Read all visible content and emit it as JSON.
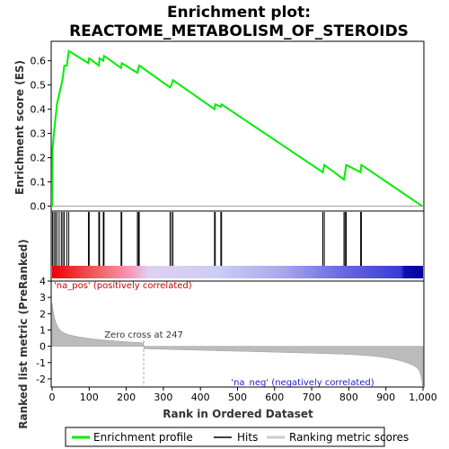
{
  "chart_data": {
    "type": "line",
    "title_line1": "Enrichment plot:",
    "title_line2": "REACTOME_METABOLISM_OF_STEROIDS",
    "es_panel": {
      "ylabel": "Enrichment score (ES)",
      "ylim": [
        -0.02,
        0.68
      ],
      "yticks": [
        "0.0",
        "0.1",
        "0.2",
        "0.3",
        "0.4",
        "0.5",
        "0.6"
      ],
      "series_color": "#00ee00",
      "points": [
        [
          0,
          0.0
        ],
        [
          1,
          0.23
        ],
        [
          5,
          0.3
        ],
        [
          9,
          0.36
        ],
        [
          13,
          0.42
        ],
        [
          19,
          0.46
        ],
        [
          25,
          0.5
        ],
        [
          29,
          0.53
        ],
        [
          33,
          0.58
        ],
        [
          40,
          0.58
        ],
        [
          45,
          0.64
        ],
        [
          98,
          0.59
        ],
        [
          100,
          0.61
        ],
        [
          126,
          0.58
        ],
        [
          128,
          0.61
        ],
        [
          138,
          0.6
        ],
        [
          140,
          0.62
        ],
        [
          186,
          0.57
        ],
        [
          188,
          0.59
        ],
        [
          230,
          0.55
        ],
        [
          233,
          0.57
        ],
        [
          235,
          0.58
        ],
        [
          318,
          0.49
        ],
        [
          322,
          0.5
        ],
        [
          326,
          0.52
        ],
        [
          438,
          0.4
        ],
        [
          440,
          0.42
        ],
        [
          455,
          0.41
        ],
        [
          457,
          0.42
        ],
        [
          730,
          0.14
        ],
        [
          734,
          0.17
        ],
        [
          787,
          0.11
        ],
        [
          790,
          0.14
        ],
        [
          793,
          0.17
        ],
        [
          832,
          0.14
        ],
        [
          834,
          0.17
        ],
        [
          998,
          0.0
        ]
      ]
    },
    "hits": [
      1,
      5,
      9,
      13,
      19,
      25,
      29,
      33,
      40,
      45,
      98,
      100,
      126,
      128,
      138,
      140,
      186,
      188,
      230,
      233,
      235,
      318,
      322,
      326,
      438,
      440,
      455,
      457,
      730,
      734,
      787,
      790,
      793,
      832,
      834
    ],
    "rank_panel": {
      "ylabel": "Ranked list metric (PreRanked)",
      "xlabel": "Rank in Ordered Dataset",
      "ylim": [
        -2.5,
        4.0
      ],
      "yticks": [
        "-2",
        "-1",
        "0",
        "1",
        "2",
        "3",
        "4"
      ],
      "xlim": [
        0,
        1000
      ],
      "xticks": [
        "0",
        "100",
        "200",
        "300",
        "400",
        "500",
        "600",
        "700",
        "800",
        "900",
        "1,000"
      ],
      "zero_cross_label": "Zero cross at 247",
      "zero_cross_rank": 247,
      "pos_label": "'na_pos' (positively correlated)",
      "neg_label": "'na_neg' (negatively correlated)",
      "pos_color": "#cc0000",
      "neg_color": "#2222cc"
    },
    "legend": {
      "enrichment_profile": "Enrichment profile",
      "hits": "Hits",
      "ranking_metric": "Ranking metric scores"
    }
  }
}
